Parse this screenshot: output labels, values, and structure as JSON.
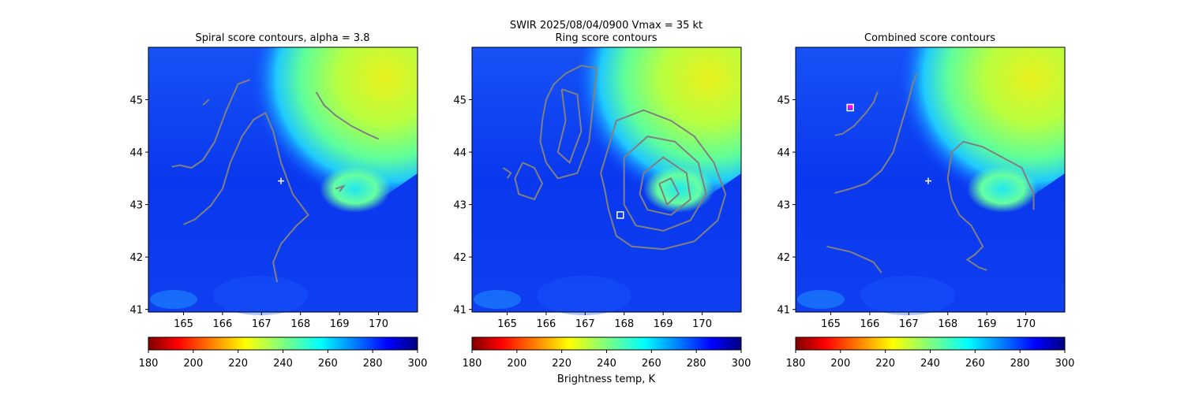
{
  "figure": {
    "suptitle_line1": "SWIR  2025/08/04/0900    Vmax = 35 kt",
    "colorbar_label": "Brightness temp, K"
  },
  "colors": {
    "contour": "#808080",
    "marker_plus": "#ffffff",
    "marker_square": "#ffffff",
    "marker_magenta": "#ff00ff"
  },
  "chart_data": [
    {
      "type": "heatmap",
      "title": "Spiral score contours, alpha =  3.8",
      "x_ticks": [
        165,
        166,
        167,
        168,
        169,
        170
      ],
      "y_ticks": [
        41,
        42,
        43,
        44,
        45
      ],
      "xlim": [
        164.1,
        171.0
      ],
      "ylim": [
        40.95,
        46.0
      ],
      "colorbar": {
        "range": [
          180,
          300
        ],
        "ticks": [
          180,
          200,
          220,
          240,
          260,
          280,
          300
        ],
        "colormap": "jet_r"
      },
      "center_marker": {
        "symbol": "+",
        "lon": 167.5,
        "lat": 43.45
      },
      "contours": [
        [
          [
            164.7,
            43.72
          ],
          [
            164.9,
            43.75
          ],
          [
            165.2,
            43.7
          ],
          [
            165.5,
            43.85
          ],
          [
            165.8,
            44.2
          ],
          [
            166.1,
            44.8
          ],
          [
            166.4,
            45.3
          ],
          [
            166.7,
            45.38
          ]
        ],
        [
          [
            165.0,
            42.62
          ],
          [
            165.3,
            42.72
          ],
          [
            165.7,
            42.98
          ],
          [
            166.0,
            43.3
          ],
          [
            166.2,
            43.8
          ],
          [
            166.5,
            44.3
          ],
          [
            166.8,
            44.62
          ],
          [
            167.1,
            44.75
          ],
          [
            167.3,
            44.4
          ],
          [
            167.5,
            43.8
          ],
          [
            167.8,
            43.2
          ],
          [
            168.2,
            42.8
          ],
          [
            167.9,
            42.6
          ],
          [
            167.5,
            42.25
          ],
          [
            167.3,
            41.9
          ],
          [
            167.4,
            41.52
          ]
        ],
        [
          [
            165.5,
            44.9
          ],
          [
            165.65,
            45.0
          ]
        ],
        [
          [
            168.4,
            45.15
          ],
          [
            168.6,
            44.9
          ],
          [
            168.9,
            44.7
          ],
          [
            169.3,
            44.5
          ],
          [
            169.7,
            44.35
          ],
          [
            170.0,
            44.25
          ]
        ],
        [
          [
            168.9,
            43.3
          ],
          [
            169.1,
            43.35
          ],
          [
            169.0,
            43.25
          ]
        ]
      ]
    },
    {
      "type": "heatmap",
      "title": "Ring score contours",
      "x_ticks": [
        165,
        166,
        167,
        168,
        169,
        170
      ],
      "y_ticks": [
        41,
        42,
        43,
        44,
        45
      ],
      "xlim": [
        164.1,
        171.0
      ],
      "ylim": [
        40.95,
        46.0
      ],
      "colorbar": {
        "range": [
          180,
          300
        ],
        "ticks": [
          180,
          200,
          220,
          240,
          260,
          280,
          300
        ],
        "colormap": "jet_r"
      },
      "square_marker": {
        "lon": 167.9,
        "lat": 42.8
      },
      "contours": [
        [
          [
            166.0,
            45.0
          ],
          [
            165.9,
            44.6
          ],
          [
            165.85,
            44.2
          ],
          [
            166.0,
            43.8
          ],
          [
            166.3,
            43.5
          ],
          [
            166.8,
            43.6
          ],
          [
            167.1,
            44.2
          ],
          [
            167.2,
            44.9
          ],
          [
            167.3,
            45.6
          ],
          [
            166.9,
            45.65
          ],
          [
            166.5,
            45.5
          ],
          [
            166.2,
            45.3
          ],
          [
            166.0,
            45.0
          ]
        ],
        [
          [
            166.4,
            45.2
          ],
          [
            166.5,
            44.6
          ],
          [
            166.3,
            44.0
          ],
          [
            166.6,
            43.8
          ],
          [
            166.9,
            44.4
          ],
          [
            166.8,
            45.1
          ],
          [
            166.4,
            45.2
          ]
        ],
        [
          [
            165.4,
            43.8
          ],
          [
            165.7,
            43.7
          ],
          [
            165.9,
            43.4
          ],
          [
            165.7,
            43.1
          ],
          [
            165.3,
            43.2
          ],
          [
            165.2,
            43.5
          ],
          [
            165.4,
            43.8
          ]
        ],
        [
          [
            164.9,
            43.7
          ],
          [
            165.1,
            43.6
          ],
          [
            165.0,
            43.5
          ]
        ],
        [
          [
            167.4,
            43.6
          ],
          [
            167.8,
            44.6
          ],
          [
            168.5,
            44.8
          ],
          [
            169.2,
            44.6
          ],
          [
            169.8,
            44.3
          ],
          [
            170.3,
            43.8
          ],
          [
            170.6,
            43.2
          ],
          [
            170.4,
            42.7
          ],
          [
            169.8,
            42.3
          ],
          [
            169.0,
            42.15
          ],
          [
            168.2,
            42.2
          ],
          [
            167.8,
            42.4
          ],
          [
            167.6,
            42.9
          ],
          [
            167.5,
            43.3
          ],
          [
            167.4,
            43.6
          ]
        ],
        [
          [
            168.0,
            43.9
          ],
          [
            168.6,
            44.3
          ],
          [
            169.3,
            44.2
          ],
          [
            169.9,
            43.8
          ],
          [
            170.1,
            43.2
          ],
          [
            169.7,
            42.7
          ],
          [
            169.0,
            42.5
          ],
          [
            168.3,
            42.6
          ],
          [
            168.0,
            43.0
          ],
          [
            168.0,
            43.9
          ]
        ],
        [
          [
            168.5,
            43.6
          ],
          [
            169.0,
            43.9
          ],
          [
            169.6,
            43.6
          ],
          [
            169.7,
            43.1
          ],
          [
            169.2,
            42.8
          ],
          [
            168.6,
            42.9
          ],
          [
            168.4,
            43.2
          ],
          [
            168.5,
            43.6
          ]
        ],
        [
          [
            168.9,
            43.4
          ],
          [
            169.2,
            43.5
          ],
          [
            169.4,
            43.2
          ],
          [
            169.1,
            43.0
          ],
          [
            168.9,
            43.4
          ]
        ]
      ]
    },
    {
      "type": "heatmap",
      "title": "Combined score contours",
      "x_ticks": [
        165,
        166,
        167,
        168,
        169,
        170
      ],
      "y_ticks": [
        41,
        42,
        43,
        44,
        45
      ],
      "xlim": [
        164.1,
        171.0
      ],
      "ylim": [
        40.95,
        46.0
      ],
      "colorbar": {
        "range": [
          180,
          300
        ],
        "ticks": [
          180,
          200,
          220,
          240,
          260,
          280,
          300
        ],
        "colormap": "jet_r"
      },
      "center_marker": {
        "symbol": "+",
        "lon": 167.5,
        "lat": 43.45
      },
      "square_marker": {
        "lon": 165.5,
        "lat": 44.85
      },
      "magenta_marker": {
        "lon": 165.5,
        "lat": 44.87
      },
      "contours": [
        [
          [
            165.1,
            43.22
          ],
          [
            165.5,
            43.3
          ],
          [
            165.9,
            43.4
          ],
          [
            166.3,
            43.65
          ],
          [
            166.6,
            44.0
          ],
          [
            166.8,
            44.5
          ],
          [
            167.0,
            45.0
          ],
          [
            167.1,
            45.3
          ],
          [
            167.2,
            45.5
          ]
        ],
        [
          [
            165.1,
            44.32
          ],
          [
            165.3,
            44.35
          ],
          [
            165.6,
            44.5
          ],
          [
            165.9,
            44.75
          ],
          [
            166.1,
            44.95
          ],
          [
            166.2,
            45.15
          ]
        ],
        [
          [
            164.9,
            42.2
          ],
          [
            165.2,
            42.15
          ],
          [
            165.5,
            42.1
          ],
          [
            165.8,
            42.0
          ],
          [
            166.1,
            41.9
          ],
          [
            166.3,
            41.7
          ]
        ],
        [
          [
            168.1,
            43.1
          ],
          [
            168.0,
            43.5
          ],
          [
            168.1,
            44.0
          ],
          [
            168.4,
            44.2
          ],
          [
            168.9,
            44.1
          ],
          [
            169.4,
            43.9
          ],
          [
            169.9,
            43.7
          ],
          [
            170.2,
            43.2
          ],
          [
            170.2,
            42.9
          ]
        ],
        [
          [
            168.1,
            43.1
          ],
          [
            168.3,
            42.8
          ],
          [
            168.6,
            42.6
          ],
          [
            168.9,
            42.2
          ],
          [
            168.7,
            42.05
          ],
          [
            168.5,
            41.95
          ],
          [
            168.8,
            41.8
          ],
          [
            169.0,
            41.75
          ]
        ]
      ]
    }
  ]
}
